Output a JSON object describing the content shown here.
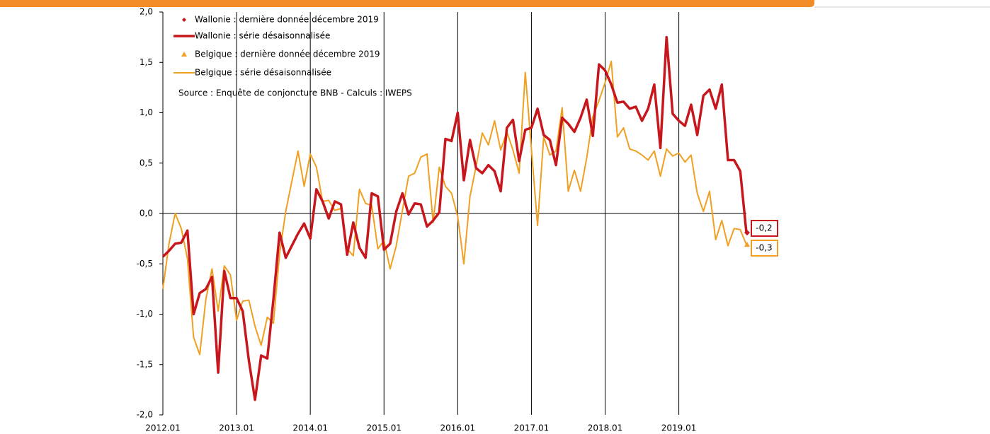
{
  "chart_data": {
    "type": "line",
    "categories": [
      "2012.01",
      null,
      null,
      null,
      null,
      null,
      null,
      null,
      null,
      null,
      null,
      null,
      "2013.01",
      null,
      null,
      null,
      null,
      null,
      null,
      null,
      null,
      null,
      null,
      null,
      "2014.01",
      null,
      null,
      null,
      null,
      null,
      null,
      null,
      null,
      null,
      null,
      null,
      "2015.01",
      null,
      null,
      null,
      null,
      null,
      null,
      null,
      null,
      null,
      null,
      null,
      "2016.01",
      null,
      null,
      null,
      null,
      null,
      null,
      null,
      null,
      null,
      null,
      null,
      "2017.01",
      null,
      null,
      null,
      null,
      null,
      null,
      null,
      null,
      null,
      null,
      null,
      "2018.01",
      null,
      null,
      null,
      null,
      null,
      null,
      null,
      null,
      null,
      null,
      null,
      "2019.01",
      null,
      null,
      null,
      null,
      null,
      null,
      null,
      null,
      null,
      null,
      null
    ],
    "ylim": [
      -2,
      2
    ],
    "yticks": [
      {
        "value": -2,
        "label": "-2,0"
      },
      {
        "value": -1.5,
        "label": "-1,5"
      },
      {
        "value": -1,
        "label": "-1,0"
      },
      {
        "value": -0.5,
        "label": "-0,5"
      },
      {
        "value": 0,
        "label": "0,0"
      },
      {
        "value": 0.5,
        "label": "0,5"
      },
      {
        "value": 1,
        "label": "1,0"
      },
      {
        "value": 1.5,
        "label": "1,5"
      },
      {
        "value": 2,
        "label": "2,0"
      }
    ],
    "zero_line": true,
    "vertical_grid": true,
    "annotation": "Source : Enquête de conjoncture BNB - Calculs : IWEPS",
    "series": [
      {
        "name": "Wallonie : série désaisonnalisée",
        "color": "#c8161d",
        "width": 3.5,
        "values": [
          -0.43,
          -0.37,
          -0.3,
          -0.29,
          -0.17,
          -1.0,
          -0.79,
          -0.75,
          -0.63,
          -1.58,
          -0.57,
          -0.84,
          -0.84,
          -0.97,
          -1.46,
          -1.85,
          -1.41,
          -1.44,
          -0.85,
          -0.19,
          -0.44,
          -0.32,
          -0.2,
          -0.1,
          -0.25,
          0.24,
          0.12,
          -0.05,
          0.12,
          0.09,
          -0.41,
          -0.09,
          -0.34,
          -0.44,
          0.2,
          0.17,
          -0.36,
          -0.3,
          0.02,
          0.2,
          -0.01,
          0.1,
          0.09,
          -0.13,
          -0.07,
          0.01,
          0.74,
          0.72,
          1.0,
          0.33,
          0.73,
          0.45,
          0.4,
          0.48,
          0.42,
          0.22,
          0.85,
          0.93,
          0.52,
          0.83,
          0.85,
          1.04,
          0.78,
          0.73,
          0.48,
          0.95,
          0.89,
          0.81,
          0.95,
          1.13,
          0.77,
          1.48,
          1.42,
          1.28,
          1.1,
          1.11,
          1.04,
          1.06,
          0.92,
          1.04,
          1.28,
          0.65,
          1.75,
          0.99,
          0.92,
          0.87,
          1.08,
          0.78,
          1.17,
          1.23,
          1.04,
          1.28,
          0.53,
          0.53,
          0.42,
          -0.19
        ],
        "last_point": {
          "name": "Wallonie : dernière donnée décembre 2019",
          "shape": "diamond",
          "value": -0.19,
          "value_label": "-0,2"
        }
      },
      {
        "name": "Belgique : série désaisonnalisée",
        "color": "#f0a020",
        "width": 2,
        "values": [
          -0.75,
          -0.3,
          0.0,
          -0.15,
          -0.45,
          -1.23,
          -1.4,
          -0.85,
          -0.55,
          -0.97,
          -0.52,
          -0.61,
          -1.06,
          -0.87,
          -0.86,
          -1.12,
          -1.31,
          -1.03,
          -1.09,
          -0.4,
          0.02,
          0.32,
          0.62,
          0.27,
          0.59,
          0.46,
          0.12,
          0.13,
          0.03,
          0.05,
          -0.35,
          -0.42,
          0.24,
          0.1,
          0.08,
          -0.35,
          -0.27,
          -0.55,
          -0.32,
          0.03,
          0.37,
          0.4,
          0.56,
          0.59,
          -0.09,
          0.46,
          0.27,
          0.2,
          -0.03,
          -0.5,
          0.17,
          0.47,
          0.8,
          0.68,
          0.92,
          0.63,
          0.81,
          0.63,
          0.4,
          1.4,
          0.64,
          -0.12,
          0.76,
          0.58,
          0.62,
          1.05,
          0.22,
          0.43,
          0.22,
          0.55,
          0.96,
          1.12,
          1.3,
          1.51,
          0.76,
          0.85,
          0.64,
          0.62,
          0.58,
          0.53,
          0.62,
          0.37,
          0.64,
          0.57,
          0.6,
          0.51,
          0.58,
          0.2,
          0.02,
          0.22,
          -0.26,
          -0.07,
          -0.32,
          -0.15,
          -0.16,
          -0.31
        ],
        "last_point": {
          "name": "Belgique : dernière donnée décembre 2019",
          "shape": "triangle",
          "value": -0.31,
          "value_label": "-0,3"
        }
      }
    ]
  }
}
